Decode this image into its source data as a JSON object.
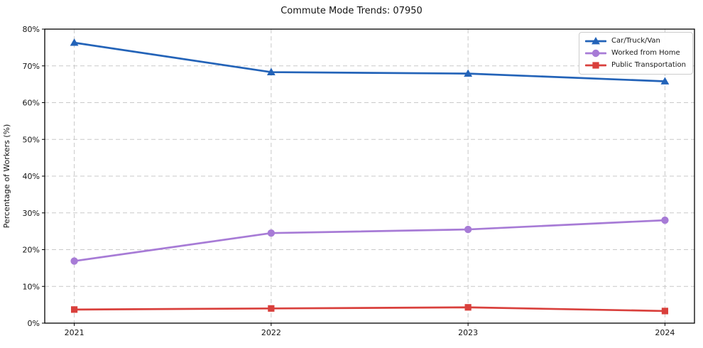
{
  "chart_data": {
    "type": "line",
    "title": "Commute Mode Trends: 07950",
    "xlabel": "",
    "ylabel": "Percentage of Workers (%)",
    "categories": [
      "2021",
      "2022",
      "2023",
      "2024"
    ],
    "ylim": [
      0,
      80
    ],
    "yticks": [
      0,
      10,
      20,
      30,
      40,
      50,
      60,
      70,
      80
    ],
    "ytick_suffix": "%",
    "grid": "dashed",
    "grid_color": "#c9c9c9",
    "legend_position": "upper right",
    "series": [
      {
        "name": "Car/Truck/Van",
        "color": "#2363b8",
        "marker": "triangle",
        "values": [
          76.3,
          68.3,
          67.9,
          65.8
        ]
      },
      {
        "name": "Worked from Home",
        "color": "#a77bd6",
        "marker": "circle",
        "values": [
          16.9,
          24.5,
          25.5,
          28.0
        ]
      },
      {
        "name": "Public Transportation",
        "color": "#d9403c",
        "marker": "square",
        "values": [
          3.7,
          4.0,
          4.3,
          3.3
        ]
      }
    ]
  }
}
